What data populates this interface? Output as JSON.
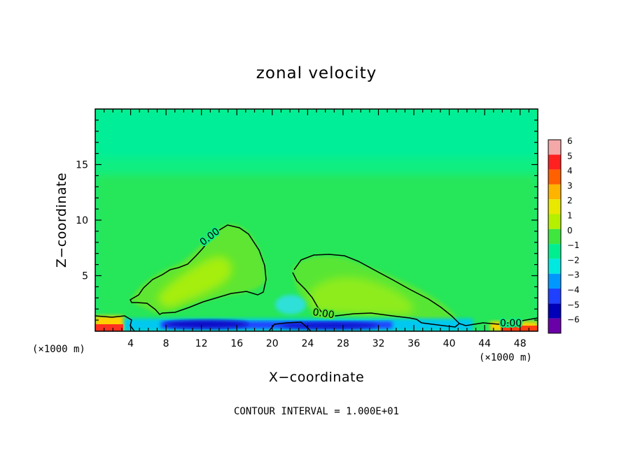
{
  "chart_data": {
    "type": "heatmap",
    "title": "zonal velocity",
    "xlabel": "X−coordinate",
    "ylabel": "Z−coordinate",
    "x_unit_left": "(×1000 m)",
    "x_unit_right": "(×1000 m)",
    "xlim": [
      0,
      50
    ],
    "ylim": [
      0,
      20
    ],
    "x_ticks": [
      4,
      8,
      12,
      16,
      20,
      24,
      28,
      32,
      36,
      40,
      44,
      48
    ],
    "x_tick_labels": [
      "4",
      "8",
      "12",
      "16",
      "20",
      "24",
      "28",
      "32",
      "36",
      "40",
      "44",
      "48"
    ],
    "y_ticks": [
      5,
      10,
      15
    ],
    "y_tick_labels": [
      "5",
      "10",
      "15"
    ],
    "contour_label": "0.00",
    "footnote": "CONTOUR INTERVAL = 1.000E+01",
    "colorbar": {
      "levels": [
        6,
        5,
        4,
        3,
        2,
        1,
        0,
        -1,
        -2,
        -3,
        -4,
        -5,
        -6
      ],
      "labels": [
        "6",
        "5",
        "4",
        "3",
        "2",
        "1",
        "0",
        "−1",
        "−2",
        "−3",
        "−4",
        "−5",
        "−6"
      ],
      "colors": [
        "#f4a8a8",
        "#ff2020",
        "#ff6000",
        "#ffb400",
        "#e8e800",
        "#b4f000",
        "#3ee63e",
        "#00ee90",
        "#00e8e0",
        "#0098ff",
        "#2040ff",
        "#0000b8",
        "#6a00a8"
      ]
    },
    "features": [
      {
        "name": "positive lobe west",
        "x_range": [
          4.5,
          19.5
        ],
        "z_range": [
          1.5,
          9.5
        ],
        "peak": 1.5,
        "peak_at": [
          10,
          3.5
        ]
      },
      {
        "name": "positive lobe east",
        "x_range": [
          22.5,
          41.5
        ],
        "z_range": [
          0.5,
          6.8
        ],
        "peak": 1.0,
        "peak_at": [
          30,
          2.5
        ]
      },
      {
        "name": "near-surface negative band",
        "x_range": [
          5,
          40
        ],
        "z_range": [
          0,
          0.8
        ],
        "peak": -4.5
      },
      {
        "name": "near-surface positive strip",
        "x_range": [
          0,
          2
        ],
        "z_range": [
          0,
          0.6
        ],
        "peak": 5.0
      },
      {
        "name": "upper background",
        "x_range": [
          0,
          50
        ],
        "z_range": [
          12,
          20
        ],
        "value": -0.5
      }
    ]
  }
}
